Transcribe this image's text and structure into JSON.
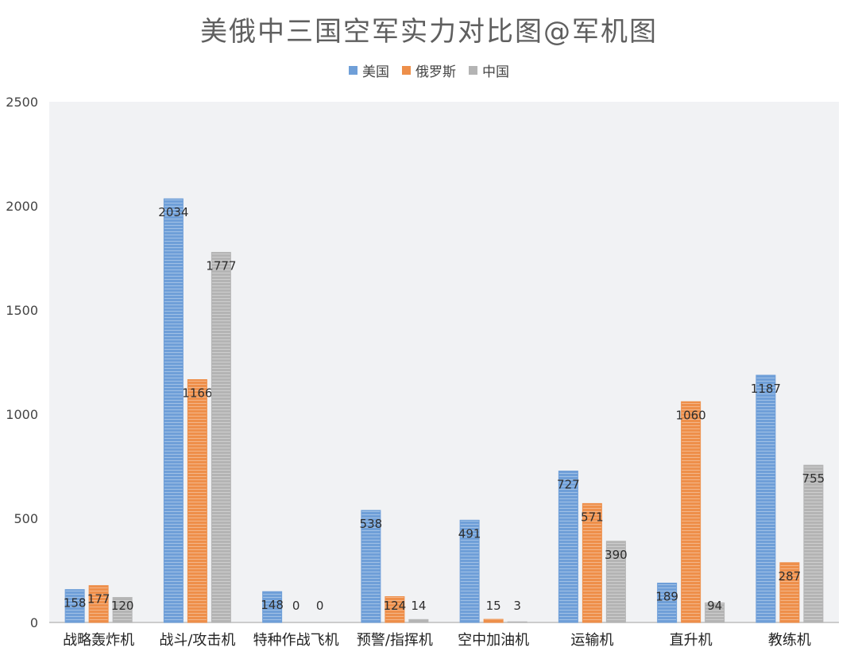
{
  "chart_data": {
    "type": "bar",
    "title": "美俄中三国空军实力对比图@军机图",
    "categories": [
      "战略轰炸机",
      "战斗/攻击机",
      "特种作战飞机",
      "预警/指挥机",
      "空中加油机",
      "运输机",
      "直升机",
      "教练机"
    ],
    "series": [
      {
        "name": "美国",
        "color": "#6f9fd8",
        "values": [
          158,
          2034,
          148,
          538,
          491,
          727,
          189,
          1187
        ]
      },
      {
        "name": "俄罗斯",
        "color": "#ee8f4a",
        "values": [
          177,
          1166,
          0,
          124,
          15,
          571,
          1060,
          287
        ]
      },
      {
        "name": "中国",
        "color": "#b4b4b4",
        "values": [
          120,
          1777,
          0,
          14,
          3,
          390,
          94,
          755
        ]
      }
    ],
    "ylim": [
      0,
      2500
    ],
    "yticks": [
      0,
      500,
      1000,
      1500,
      2000,
      2500
    ],
    "grid": false,
    "legend_position": "top",
    "plot_background": "#f1f2f4"
  }
}
